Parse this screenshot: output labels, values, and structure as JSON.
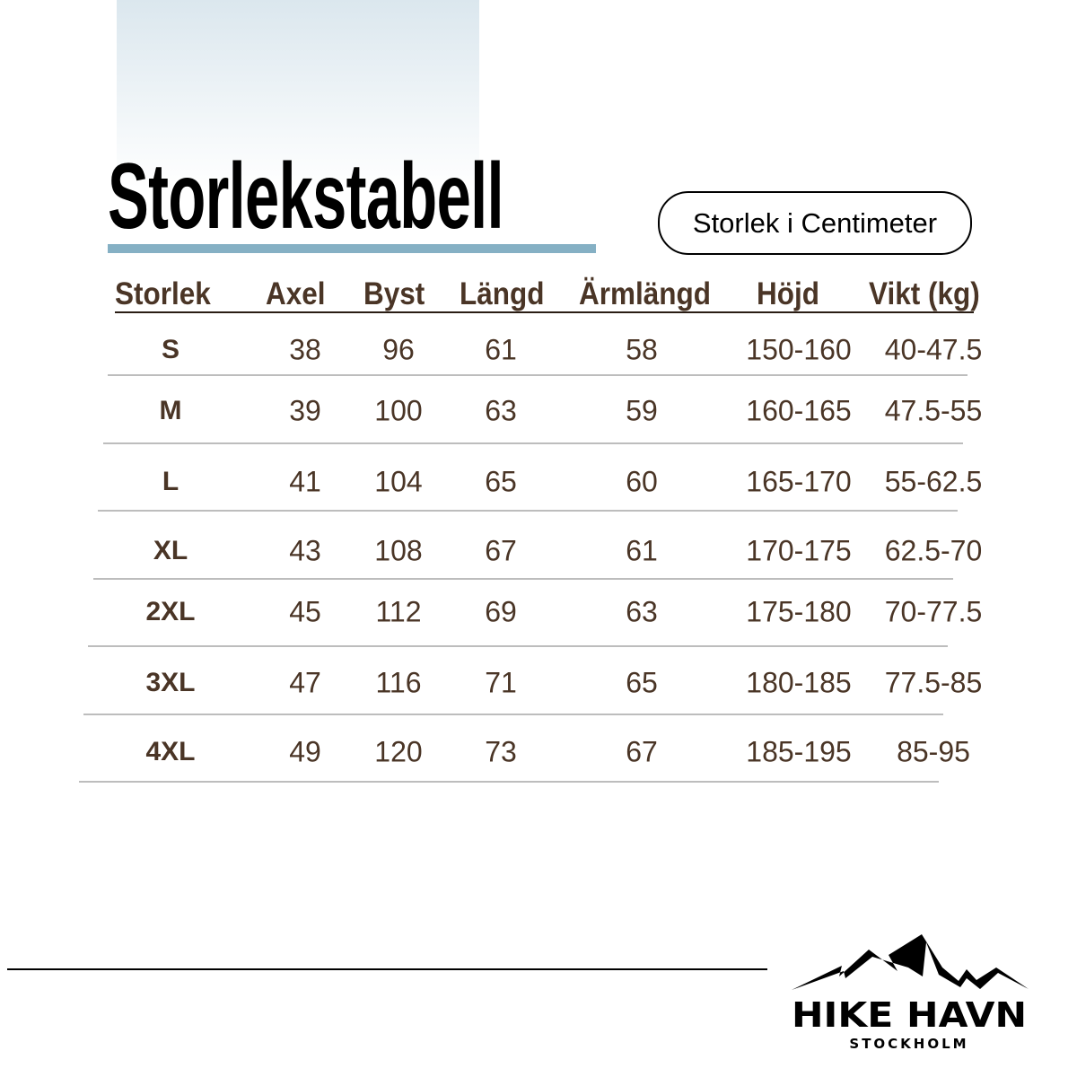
{
  "title": "Storlekstabell",
  "unit_badge": "Storlek i Centimeter",
  "headers": [
    "Storlek",
    "Axel",
    "Byst",
    "Längd",
    "Ärmlängd",
    "Höjd",
    "Vikt (kg)"
  ],
  "rows": [
    [
      "S",
      "38",
      "96",
      "61",
      "58",
      "150-160",
      "40-47.5"
    ],
    [
      "M",
      "39",
      "100",
      "63",
      "59",
      "160-165",
      "47.5-55"
    ],
    [
      "L",
      "41",
      "104",
      "65",
      "60",
      "165-170",
      "55-62.5"
    ],
    [
      "XL",
      "43",
      "108",
      "67",
      "61",
      "170-175",
      "62.5-70"
    ],
    [
      "2XL",
      "45",
      "112",
      "69",
      "63",
      "175-180",
      "70-77.5"
    ],
    [
      "3XL",
      "47",
      "116",
      "71",
      "65",
      "180-185",
      "77.5-85"
    ],
    [
      "4XL",
      "49",
      "120",
      "73",
      "67",
      "185-195",
      "85-95"
    ]
  ],
  "brand": {
    "name": "HIKE HAVN",
    "sub": "STOCKHOLM",
    "icon": "mountain-icon"
  },
  "colors": {
    "text": "#4a3526",
    "accent_bar": "#85b0c4"
  }
}
